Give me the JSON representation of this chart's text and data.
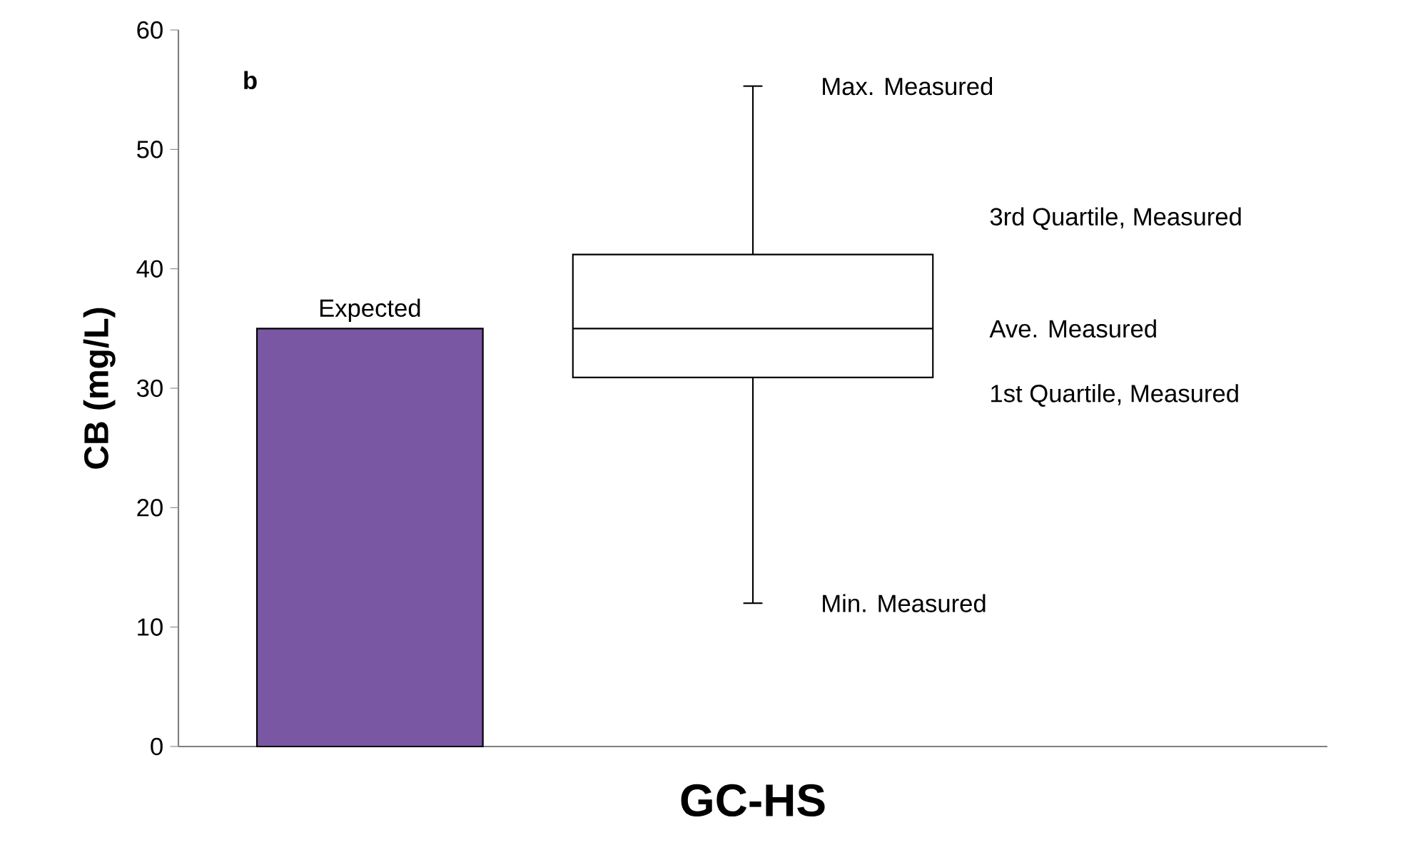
{
  "chart_data": {
    "type": "box",
    "xlabel": "GC-HS",
    "ylabel": "CB (mg/L)",
    "categories": [
      null,
      null,
      null
    ],
    "boxes": [
      null,
      {
        "low": 12,
        "q1": 30.9,
        "median": 35,
        "q3": 41.2,
        "high": 55.3
      },
      null
    ],
    "series": [
      {
        "type": "bar",
        "color": "#7a57a3",
        "values": [
          35,
          null,
          null
        ]
      }
    ],
    "ylim": [
      0,
      60
    ],
    "yticks": [
      0,
      10,
      20,
      30,
      40,
      50,
      60
    ],
    "annotations": [
      "b",
      {
        "text": "Expected",
        "y": 35
      },
      "Max. Measured",
      "3rd Quartile, Measured",
      "Ave. Measured",
      "1st Quartile, Measured",
      "Min. Measured"
    ]
  }
}
